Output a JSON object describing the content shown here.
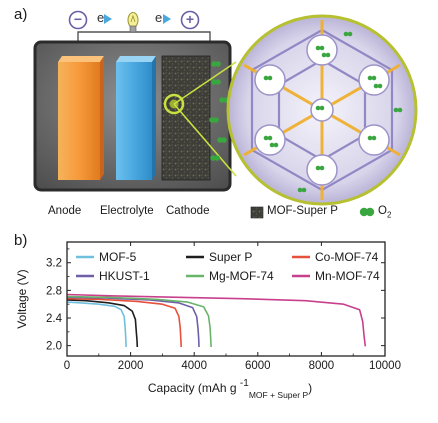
{
  "panel_a": {
    "letter": "a)",
    "circuit": {
      "minus_sign": "−",
      "plus_sign": "+",
      "electron_left": "e",
      "electron_right": "e"
    },
    "labels": {
      "anode": "Anode",
      "electrolyte": "Electrolyte",
      "cathode": "Cathode",
      "mof_legend": "MOF-Super P",
      "o2_legend": "O",
      "o2_subscript": "2"
    },
    "colors": {
      "anode": "#f79a3c",
      "electrolyte": "#4aa8e0",
      "cathode": "#3d3d38",
      "cell_frame": "#2b2b2b",
      "mof_framework": "#8a7fc0",
      "mof_bond": "#f0b030",
      "o2": "#3aa640"
    }
  },
  "panel_b": {
    "letter": "b)"
  },
  "chart_data": {
    "type": "line",
    "xlabel": "Capacity (mAh g",
    "xlabel_superscript": "-1",
    "xlabel_subscript": "MOF + Super P",
    "xlabel_close": ")",
    "ylabel": "Voltage (V)",
    "xlim": [
      0,
      10000
    ],
    "ylim": [
      1.85,
      3.5
    ],
    "xticks": [
      0,
      2000,
      4000,
      6000,
      8000,
      10000
    ],
    "yticks": [
      2.0,
      2.4,
      2.8,
      3.2
    ],
    "xtick_labels": [
      "0",
      "2000",
      "4000",
      "6000",
      "8000",
      "10000"
    ],
    "ytick_labels": [
      "2.0",
      "2.4",
      "2.8",
      "3.2"
    ],
    "grid": false,
    "legend_position": "top",
    "series": [
      {
        "name": "MOF-5",
        "color": "#6fc0de",
        "x": [
          0,
          400,
          1000,
          1500,
          1700,
          1800,
          1830,
          1850,
          1860
        ],
        "y": [
          2.63,
          2.62,
          2.6,
          2.57,
          2.52,
          2.42,
          2.25,
          2.1,
          1.98
        ]
      },
      {
        "name": "Super P",
        "color": "#1e1e1e",
        "x": [
          0,
          600,
          1300,
          1800,
          2050,
          2150,
          2180,
          2200,
          2210
        ],
        "y": [
          2.66,
          2.65,
          2.62,
          2.58,
          2.5,
          2.38,
          2.2,
          2.08,
          1.98
        ]
      },
      {
        "name": "Co-MOF-74",
        "color": "#e8503a",
        "x": [
          0,
          1000,
          2200,
          3000,
          3400,
          3520,
          3560,
          3580,
          3590
        ],
        "y": [
          2.68,
          2.67,
          2.64,
          2.6,
          2.54,
          2.42,
          2.26,
          2.1,
          1.98
        ]
      },
      {
        "name": "HKUST-1",
        "color": "#6e5fa8",
        "x": [
          0,
          1200,
          2600,
          3500,
          3950,
          4080,
          4120,
          4140,
          4150
        ],
        "y": [
          2.7,
          2.69,
          2.66,
          2.62,
          2.55,
          2.42,
          2.25,
          2.1,
          1.98
        ]
      },
      {
        "name": "Mg-MOF-74",
        "color": "#6ab46a",
        "x": [
          0,
          1300,
          2800,
          3800,
          4300,
          4450,
          4500,
          4520,
          4530
        ],
        "y": [
          2.71,
          2.7,
          2.67,
          2.63,
          2.56,
          2.43,
          2.26,
          2.1,
          1.98
        ]
      },
      {
        "name": "Mn-MOF-74",
        "color": "#c8408c",
        "x": [
          0,
          1500,
          3500,
          5500,
          7500,
          8700,
          9200,
          9300,
          9340,
          9380
        ],
        "y": [
          2.74,
          2.72,
          2.7,
          2.68,
          2.65,
          2.6,
          2.52,
          2.35,
          2.15,
          1.99
        ]
      }
    ]
  }
}
